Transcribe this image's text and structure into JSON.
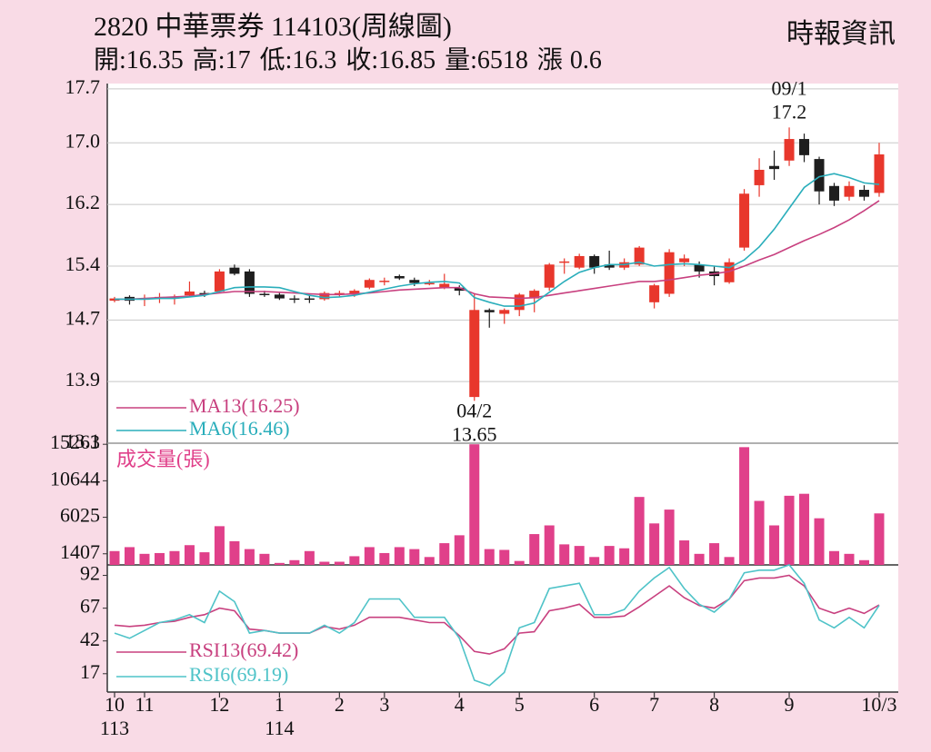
{
  "header": {
    "title": "2820 中華票券 114103(周線圖)",
    "source": "時報資訊",
    "quote": [
      {
        "label": "開:",
        "value": 16.35
      },
      {
        "label": "高:",
        "value": 17
      },
      {
        "label": "低:",
        "value": 16.3
      },
      {
        "label": "收:",
        "value": 16.85
      },
      {
        "label": "量:",
        "value": 6518
      },
      {
        "label": "漲",
        "value": 0.6
      }
    ]
  },
  "chart_data": [
    {
      "type": "candlestick",
      "up_color": "#e8372c",
      "down_color": "#1e1e1e",
      "grid": true,
      "open": [
        14.95,
        15.0,
        14.97,
        15.0,
        14.98,
        15.02,
        15.05,
        15.07,
        15.38,
        15.33,
        15.04,
        15.03,
        14.98,
        14.98,
        14.97,
        15.03,
        15.03,
        15.12,
        15.2,
        15.27,
        15.22,
        15.18,
        15.12,
        15.12,
        13.7,
        14.83,
        14.78,
        14.83,
        14.98,
        15.12,
        15.45,
        15.38,
        15.53,
        15.42,
        15.38,
        15.42,
        14.93,
        15.04,
        15.45,
        15.42,
        15.33,
        15.19,
        15.64,
        16.45,
        16.7,
        16.77,
        17.05,
        16.79,
        16.44,
        16.3,
        16.39,
        16.35
      ],
      "high": [
        15.0,
        15.02,
        15.03,
        15.05,
        15.03,
        15.2,
        15.08,
        15.36,
        15.42,
        15.36,
        15.08,
        15.05,
        15.02,
        15.03,
        15.07,
        15.08,
        15.1,
        15.24,
        15.25,
        15.29,
        15.25,
        15.22,
        15.3,
        15.15,
        15.05,
        14.85,
        14.85,
        15.05,
        15.1,
        15.44,
        15.5,
        15.56,
        15.55,
        15.6,
        15.5,
        15.66,
        15.17,
        15.62,
        15.55,
        15.46,
        15.4,
        15.5,
        16.4,
        16.8,
        16.9,
        17.2,
        17.12,
        16.82,
        16.48,
        16.5,
        16.45,
        17
      ],
      "low": [
        14.93,
        14.9,
        14.88,
        14.92,
        14.9,
        15.0,
        15.0,
        15.05,
        15.28,
        15.0,
        15.0,
        14.96,
        14.92,
        14.92,
        14.95,
        15.0,
        15.0,
        15.1,
        15.15,
        15.22,
        15.14,
        15.15,
        15.1,
        15.02,
        13.65,
        14.6,
        14.65,
        14.75,
        14.8,
        15.08,
        15.3,
        15.36,
        15.3,
        15.35,
        15.35,
        15.4,
        14.85,
        15.0,
        15.4,
        15.25,
        15.15,
        15.17,
        15.6,
        16.3,
        16.52,
        16.7,
        16.75,
        16.2,
        16.18,
        16.25,
        16.25,
        16.3
      ],
      "close": [
        14.98,
        14.95,
        14.98,
        15.0,
        15.0,
        15.07,
        15.03,
        15.33,
        15.3,
        15.04,
        15.03,
        14.98,
        14.97,
        14.97,
        15.05,
        15.05,
        15.08,
        15.22,
        15.21,
        15.24,
        15.18,
        15.18,
        15.17,
        15.08,
        14.83,
        14.8,
        14.83,
        15.03,
        15.08,
        15.42,
        15.46,
        15.53,
        15.38,
        15.38,
        15.45,
        15.64,
        15.15,
        15.58,
        15.5,
        15.33,
        15.27,
        15.45,
        16.34,
        16.65,
        16.66,
        17.05,
        16.84,
        16.37,
        16.25,
        16.44,
        16.3,
        16.85
      ],
      "series": [
        {
          "name": "MA13(16.25)",
          "color": "#c8407f",
          "values": [
            14.97,
            14.97,
            14.98,
            14.99,
            15.0,
            15.01,
            15.03,
            15.05,
            15.07,
            15.07,
            15.07,
            15.06,
            15.05,
            15.04,
            15.03,
            15.03,
            15.04,
            15.05,
            15.07,
            15.09,
            15.1,
            15.11,
            15.12,
            15.12,
            15.04,
            15.0,
            14.99,
            14.98,
            14.99,
            15.02,
            15.05,
            15.08,
            15.11,
            15.14,
            15.17,
            15.2,
            15.2,
            15.22,
            15.25,
            15.28,
            15.3,
            15.33,
            15.4,
            15.48,
            15.55,
            15.64,
            15.73,
            15.81,
            15.9,
            16.0,
            16.12,
            16.25
          ]
        },
        {
          "name": "MA6(16.46)",
          "color": "#2aaebb",
          "values": [
            14.97,
            14.97,
            14.97,
            14.98,
            14.98,
            15.0,
            15.02,
            15.07,
            15.12,
            15.13,
            15.13,
            15.12,
            15.07,
            15.02,
            14.99,
            15.0,
            15.02,
            15.06,
            15.1,
            15.14,
            15.17,
            15.19,
            15.2,
            15.18,
            14.99,
            14.93,
            14.88,
            14.88,
            14.92,
            15.06,
            15.2,
            15.32,
            15.38,
            15.42,
            15.42,
            15.45,
            15.4,
            15.42,
            15.43,
            15.42,
            15.4,
            15.38,
            15.48,
            15.65,
            15.88,
            16.15,
            16.42,
            16.56,
            16.6,
            16.55,
            16.48,
            16.46
          ]
        }
      ],
      "annotations": [
        {
          "label": "09/1",
          "value": 17.2
        },
        {
          "label": "04/2",
          "value": 13.65
        }
      ],
      "ylim": [
        13.1,
        17.77
      ],
      "yticks": [
        17.7,
        {
          "value": 17,
          "label": "17.0"
        },
        16.2,
        15.4,
        14.7,
        13.9,
        13.1
      ]
    },
    {
      "type": "bar",
      "title": "成交量(張)",
      "color": "#e0408a",
      "values": [
        1750,
        2250,
        1400,
        1500,
        1750,
        2500,
        1600,
        4900,
        3000,
        2000,
        1400,
        250,
        600,
        1750,
        400,
        400,
        1100,
        2250,
        1500,
        2250,
        2000,
        1000,
        2750,
        3750,
        15263,
        2000,
        1900,
        500,
        3900,
        5000,
        2600,
        2400,
        1000,
        2400,
        2100,
        8600,
        5250,
        7000,
        3100,
        1400,
        2750,
        1000,
        14900,
        8100,
        5000,
        8750,
        9000,
        5900,
        1750,
        1400,
        600,
        6518
      ],
      "ylim": [
        0,
        15400
      ],
      "yticks": [
        15263,
        10644,
        6025,
        1407
      ]
    },
    {
      "type": "line",
      "categories": [
        "10",
        null,
        "11",
        null,
        null,
        null,
        null,
        "12",
        null,
        null,
        null,
        "1",
        null,
        null,
        null,
        "2",
        null,
        null,
        "3",
        null,
        null,
        null,
        null,
        "4",
        null,
        null,
        null,
        "5",
        null,
        null,
        null,
        null,
        "6",
        null,
        null,
        null,
        "7",
        null,
        null,
        null,
        "8",
        null,
        null,
        null,
        null,
        "9",
        null,
        null,
        null,
        null,
        null,
        "10/3"
      ],
      "year_labels": [
        "113",
        null,
        null,
        null,
        null,
        null,
        null,
        null,
        null,
        null,
        null,
        "114",
        null,
        null,
        null,
        null,
        null,
        null,
        null,
        null,
        null,
        null,
        null,
        null,
        null,
        null,
        null,
        null,
        null,
        null,
        null,
        null,
        null,
        null,
        null,
        null,
        null,
        null,
        null,
        null,
        null,
        null,
        null,
        null,
        null,
        null,
        null,
        null,
        null,
        null,
        null,
        null
      ],
      "series": [
        {
          "name": "RSI13(69.42)",
          "color": "#c8407f",
          "values": [
            54,
            53,
            54,
            56,
            57,
            60,
            62,
            67,
            65,
            51,
            50,
            48,
            48,
            48,
            53,
            51,
            54,
            60,
            60,
            60,
            58,
            56,
            56,
            46,
            34,
            32,
            36,
            48,
            49,
            65,
            67,
            70,
            60,
            60,
            61,
            68,
            76,
            84,
            75,
            69,
            67,
            74,
            88,
            90,
            90,
            92,
            84,
            67,
            63,
            67,
            63,
            69.42
          ]
        },
        {
          "name": "RSI6(69.19)",
          "color": "#4fc3c8",
          "values": [
            48,
            44,
            50,
            56,
            58,
            62,
            56,
            80,
            72,
            48,
            50,
            48,
            48,
            48,
            54,
            48,
            56,
            74,
            74,
            74,
            60,
            60,
            60,
            44,
            12,
            8,
            18,
            52,
            56,
            82,
            84,
            86,
            62,
            62,
            66,
            80,
            90,
            98,
            82,
            70,
            64,
            74,
            94,
            96,
            96,
            100,
            86,
            58,
            52,
            60,
            52,
            69.19
          ]
        }
      ],
      "ylim": [
        3,
        100
      ],
      "yticks": [
        92,
        67,
        42,
        17
      ]
    }
  ]
}
